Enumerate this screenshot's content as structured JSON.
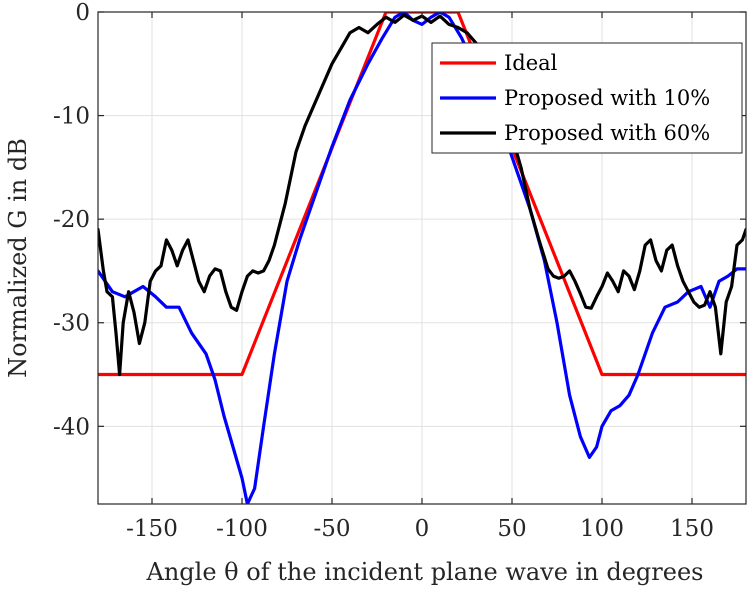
{
  "chart_data": {
    "type": "line",
    "title": "",
    "xlabel": "Angle θ of the incident plane wave in degrees",
    "ylabel": "Normalized G in dB",
    "xlim": [
      -180,
      180
    ],
    "ylim": [
      -47.5,
      0
    ],
    "xticks": [
      -150,
      -100,
      -50,
      0,
      50,
      100,
      150
    ],
    "yticks": [
      0,
      -10,
      -20,
      -30,
      -40
    ],
    "grid": true,
    "legend_position": "top-right",
    "series": [
      {
        "name": "Ideal",
        "color": "#ff0000",
        "x": [
          -180,
          -100,
          -20,
          20,
          100,
          180
        ],
        "y": [
          -35,
          -35,
          0,
          0,
          -35,
          -35
        ]
      },
      {
        "name": "Proposed with 10%",
        "color": "#0000ff",
        "x": [
          -180,
          -172,
          -165,
          -155,
          -148,
          -142,
          -135,
          -128,
          -120,
          -115,
          -110,
          -105,
          -100,
          -97,
          -93,
          -88,
          -82,
          -75,
          -68,
          -60,
          -50,
          -40,
          -30,
          -22,
          -15,
          -10,
          -5,
          0,
          5,
          10,
          15,
          22,
          30,
          40,
          50,
          60,
          68,
          75,
          82,
          88,
          93,
          97,
          100,
          105,
          110,
          115,
          120,
          128,
          135,
          142,
          148,
          155,
          160,
          165,
          170,
          175,
          180
        ],
        "y": [
          -25,
          -27,
          -27.5,
          -26.5,
          -27.5,
          -28.5,
          -28.5,
          -31,
          -33,
          -35.5,
          -39,
          -42,
          -45,
          -47.5,
          -46,
          -40,
          -33,
          -26,
          -22,
          -18,
          -13,
          -8.5,
          -5,
          -2.5,
          -0.5,
          0,
          -0.8,
          -1.2,
          -0.5,
          0,
          -0.5,
          -2.5,
          -5.5,
          -9,
          -14,
          -19,
          -24,
          -30,
          -37,
          -41,
          -43,
          -42,
          -40,
          -38.5,
          -38,
          -37,
          -35,
          -31,
          -28.5,
          -28,
          -27,
          -26.5,
          -28.5,
          -26,
          -25.5,
          -24.8,
          -24.8
        ]
      },
      {
        "name": "Proposed with 60%",
        "color": "#000000",
        "x": [
          -180,
          -177,
          -175,
          -172,
          -170,
          -168,
          -166,
          -163,
          -160,
          -157,
          -154,
          -151,
          -148,
          -145,
          -142,
          -139,
          -136,
          -133,
          -130,
          -127,
          -124,
          -121,
          -118,
          -115,
          -112,
          -109,
          -106,
          -103,
          -100,
          -97,
          -94,
          -91,
          -88,
          -85,
          -82,
          -79,
          -76,
          -73,
          -70,
          -65,
          -60,
          -55,
          -50,
          -45,
          -40,
          -35,
          -30,
          -25,
          -20,
          -15,
          -10,
          -5,
          0,
          5,
          10,
          15,
          20,
          25,
          30,
          35,
          40,
          45,
          50,
          55,
          60,
          65,
          70,
          73,
          76,
          79,
          82,
          85,
          88,
          91,
          94,
          97,
          100,
          103,
          106,
          109,
          112,
          115,
          118,
          121,
          124,
          127,
          130,
          133,
          136,
          139,
          142,
          145,
          148,
          151,
          154,
          157,
          160,
          163,
          166,
          169,
          172,
          175,
          178,
          180
        ],
        "y": [
          -21,
          -25,
          -27,
          -27.5,
          -31,
          -35,
          -30,
          -27,
          -29,
          -32,
          -30,
          -26,
          -25,
          -24.5,
          -22,
          -23,
          -24.5,
          -23,
          -22,
          -24,
          -26,
          -27,
          -25.5,
          -24.8,
          -25,
          -27,
          -28.5,
          -28.8,
          -27,
          -25.5,
          -25,
          -25.2,
          -25,
          -24,
          -22.5,
          -20.5,
          -18.5,
          -16,
          -13.5,
          -11,
          -9,
          -7,
          -5,
          -3.5,
          -2,
          -1.5,
          -2,
          -1.2,
          -0.5,
          -1,
          -0.3,
          -0.8,
          -0.4,
          -1,
          -0.4,
          -1.2,
          -1.5,
          -2,
          -3,
          -4.5,
          -6.5,
          -9,
          -12,
          -15,
          -19,
          -22,
          -24.8,
          -25.5,
          -25.7,
          -25.5,
          -25,
          -26,
          -27.2,
          -28.5,
          -28.6,
          -27.5,
          -26.5,
          -25.2,
          -26,
          -27,
          -25,
          -25.5,
          -26.8,
          -25,
          -22.5,
          -22,
          -24,
          -25,
          -23,
          -22.5,
          -24.5,
          -26,
          -27,
          -28,
          -28.5,
          -28.3,
          -27,
          -28.5,
          -33,
          -28,
          -26.5,
          -22.5,
          -22,
          -21
        ]
      }
    ]
  }
}
